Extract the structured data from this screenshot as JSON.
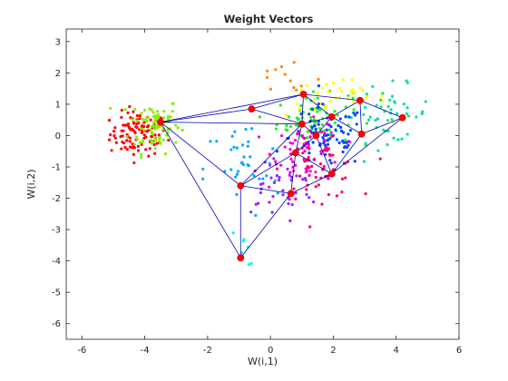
{
  "chart_data": {
    "type": "scatter",
    "title": "Weight Vectors",
    "xlabel": "W(i,1)",
    "ylabel": "W(i,2)",
    "xlim": [
      -6.5,
      6
    ],
    "ylim": [
      -6.5,
      3.4
    ],
    "xticks": [
      "-6",
      "-4",
      "-2",
      "0",
      "2",
      "4",
      "6"
    ],
    "yticks": [
      "3",
      "2",
      "1",
      "0",
      "-1",
      "-2",
      "-3",
      "-4",
      "-5",
      "-6"
    ],
    "grid": false,
    "box": true,
    "colors": {
      "axes": "#262626",
      "lines": "#0000bb",
      "neurons": "#ff0000"
    },
    "clusters": [
      {
        "color": "#ff0000",
        "cx": -4.2,
        "cy": 0.05,
        "sx": 0.45,
        "sy": 0.35,
        "n": 110
      },
      {
        "color": "#88ee00",
        "cx": -3.7,
        "cy": 0.35,
        "sx": 0.4,
        "sy": 0.45,
        "n": 80
      },
      {
        "color": "#22ee22",
        "cx": 1.4,
        "cy": 0.5,
        "sx": 0.6,
        "sy": 0.4,
        "n": 70
      },
      {
        "color": "#00e0a0",
        "cx": 3.7,
        "cy": 0.7,
        "sx": 0.7,
        "sy": 0.45,
        "n": 50
      },
      {
        "color": "#ffff00",
        "cx": 2.1,
        "cy": 1.2,
        "sx": 0.8,
        "sy": 0.3,
        "n": 40
      },
      {
        "color": "#0044ff",
        "cx": 1.8,
        "cy": -0.05,
        "sx": 0.6,
        "sy": 0.5,
        "n": 80
      },
      {
        "color": "#ff00cc",
        "cx": 1.2,
        "cy": -0.5,
        "sx": 0.55,
        "sy": 0.45,
        "n": 60
      },
      {
        "color": "#ff0066",
        "cx": 1.6,
        "cy": -1.1,
        "sx": 0.6,
        "sy": 0.45,
        "n": 50
      },
      {
        "color": "#9922ff",
        "cx": 0.2,
        "cy": -1.6,
        "sx": 0.7,
        "sy": 0.5,
        "n": 40
      },
      {
        "color": "#00aaff",
        "cx": -0.9,
        "cy": -1.1,
        "sx": 0.6,
        "sy": 0.8,
        "n": 35
      },
      {
        "color": "#00ffdd",
        "cx": -0.8,
        "cy": -3.7,
        "sx": 0.35,
        "sy": 0.7,
        "n": 8
      },
      {
        "color": "#ff8800",
        "cx": 0.5,
        "cy": 1.8,
        "sx": 0.6,
        "sy": 0.4,
        "n": 12
      }
    ],
    "neurons": [
      {
        "x": -3.5,
        "y": 0.43
      },
      {
        "x": -0.6,
        "y": 0.85
      },
      {
        "x": 1.05,
        "y": 1.32
      },
      {
        "x": 2.85,
        "y": 1.12
      },
      {
        "x": 4.2,
        "y": 0.57
      },
      {
        "x": 1.0,
        "y": 0.37
      },
      {
        "x": 1.95,
        "y": 0.6
      },
      {
        "x": 2.9,
        "y": 0.05
      },
      {
        "x": 1.45,
        "y": 0.0
      },
      {
        "x": 0.8,
        "y": -0.55
      },
      {
        "x": 1.95,
        "y": -1.22
      },
      {
        "x": -0.95,
        "y": -1.6
      },
      {
        "x": 0.65,
        "y": -1.85
      },
      {
        "x": -0.95,
        "y": -3.9
      }
    ],
    "edges": [
      [
        0,
        1
      ],
      [
        0,
        2
      ],
      [
        0,
        5
      ],
      [
        0,
        11
      ],
      [
        0,
        13
      ],
      [
        1,
        2
      ],
      [
        1,
        5
      ],
      [
        2,
        3
      ],
      [
        2,
        5
      ],
      [
        2,
        6
      ],
      [
        3,
        4
      ],
      [
        3,
        6
      ],
      [
        3,
        7
      ],
      [
        4,
        7
      ],
      [
        4,
        10
      ],
      [
        5,
        6
      ],
      [
        5,
        8
      ],
      [
        5,
        9
      ],
      [
        5,
        11
      ],
      [
        6,
        7
      ],
      [
        6,
        8
      ],
      [
        7,
        10
      ],
      [
        8,
        9
      ],
      [
        8,
        10
      ],
      [
        9,
        10
      ],
      [
        9,
        11
      ],
      [
        9,
        12
      ],
      [
        10,
        12
      ],
      [
        11,
        12
      ],
      [
        11,
        13
      ],
      [
        12,
        13
      ]
    ]
  }
}
